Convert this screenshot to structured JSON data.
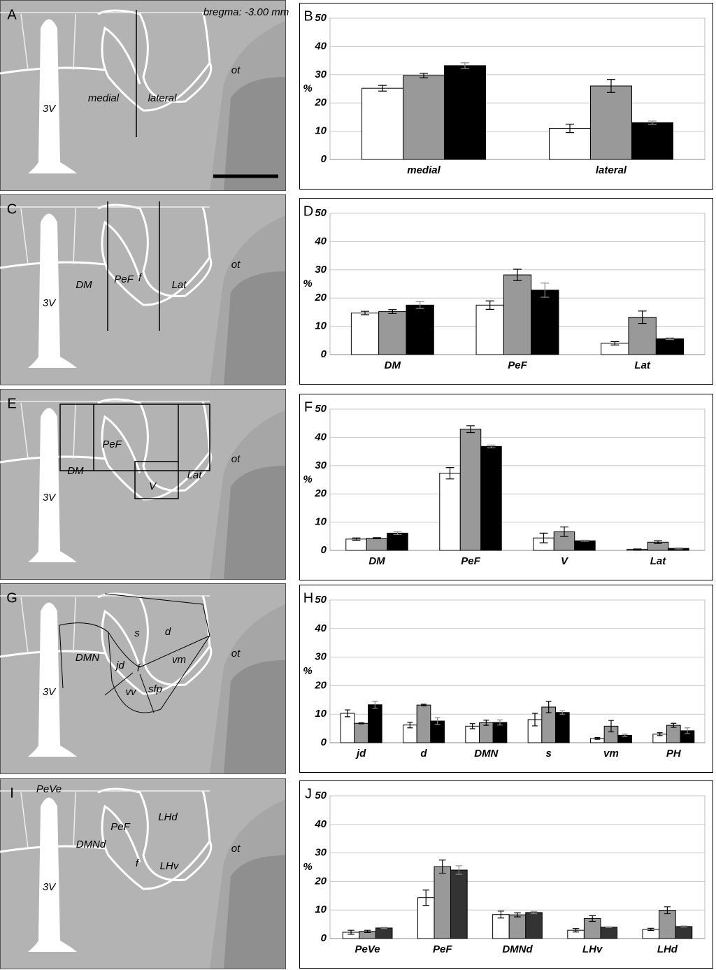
{
  "images": [
    {
      "panel": "A",
      "labels": [
        "bregma: -3.00 mm",
        "medial",
        "lateral",
        "3V",
        "ot"
      ]
    },
    {
      "panel": "C",
      "labels": [
        "DM",
        "PeF",
        "f",
        "Lat",
        "3V",
        "ot"
      ]
    },
    {
      "panel": "E",
      "labels": [
        "PeF",
        "DM",
        "V",
        "Lat",
        "3V",
        "ot"
      ]
    },
    {
      "panel": "G",
      "labels": [
        "s",
        "d",
        "DMN",
        "jd",
        "f",
        "vm",
        "vv",
        "sfp",
        "3V",
        "ot"
      ]
    },
    {
      "panel": "I",
      "labels": [
        "PeVe",
        "LHd",
        "PeF",
        "DMNd",
        "f",
        "LHv",
        "3V",
        "ot"
      ]
    }
  ],
  "chart_data": [
    {
      "type": "bar",
      "panel": "B",
      "ylabel": "%",
      "categories": [
        "medial",
        "lateral"
      ],
      "ylim": [
        0,
        50
      ],
      "yticks": [
        0,
        10,
        20,
        30,
        40,
        50
      ],
      "grid": true,
      "series": [
        {
          "color": "#ffffff",
          "values": [
            25.2,
            11
          ],
          "errors": [
            1,
            1.5
          ]
        },
        {
          "color": "#999999",
          "values": [
            29.7,
            26
          ],
          "errors": [
            0.8,
            2.3
          ]
        },
        {
          "color": "#000000",
          "values": [
            33.2,
            13
          ],
          "errors": [
            1,
            0.6
          ]
        }
      ]
    },
    {
      "type": "bar",
      "panel": "D",
      "ylabel": "%",
      "categories": [
        "DM",
        "PeF",
        "Lat"
      ],
      "ylim": [
        0,
        50
      ],
      "yticks": [
        0,
        10,
        20,
        30,
        40,
        50
      ],
      "grid": true,
      "series": [
        {
          "color": "#ffffff",
          "values": [
            14.7,
            17.5,
            4
          ],
          "errors": [
            0.6,
            1.5,
            0.6
          ]
        },
        {
          "color": "#999999",
          "values": [
            15.2,
            28.2,
            13.2
          ],
          "errors": [
            0.7,
            2,
            2.2
          ]
        },
        {
          "color": "#000000",
          "values": [
            17.5,
            22.8,
            5.6
          ],
          "errors": [
            1.2,
            2.5,
            0.3
          ]
        }
      ]
    },
    {
      "type": "bar",
      "panel": "F",
      "ylabel": "%",
      "categories": [
        "DM",
        "PeF",
        "V",
        "Lat"
      ],
      "ylim": [
        0,
        50
      ],
      "yticks": [
        0,
        10,
        20,
        30,
        40,
        50
      ],
      "grid": true,
      "series": [
        {
          "color": "#ffffff",
          "values": [
            4,
            27.3,
            4.4,
            0.4
          ],
          "errors": [
            0.4,
            2,
            1.7,
            0.1
          ]
        },
        {
          "color": "#999999",
          "values": [
            4.3,
            42.9,
            6.6,
            2.9
          ],
          "errors": [
            0.2,
            1.2,
            1.7,
            0.5
          ]
        },
        {
          "color": "#000000",
          "values": [
            6.1,
            36.8,
            3.4,
            0.7
          ],
          "errors": [
            0.5,
            0.5,
            0.2,
            0.2
          ]
        }
      ]
    },
    {
      "type": "bar",
      "panel": "H",
      "ylabel": "%",
      "categories": [
        "jd",
        "d",
        "DMN",
        "s",
        "vm",
        "PH"
      ],
      "ylim": [
        0,
        50
      ],
      "yticks": [
        0,
        10,
        20,
        30,
        40,
        50
      ],
      "grid": true,
      "series": [
        {
          "color": "#ffffff",
          "values": [
            10.3,
            6.2,
            5.8,
            8.1,
            1.5,
            3
          ],
          "errors": [
            1.2,
            1,
            0.9,
            2.2,
            0.3,
            0.5
          ]
        },
        {
          "color": "#999999",
          "values": [
            6.8,
            13.2,
            7,
            12.5,
            5.8,
            6.1
          ],
          "errors": [
            0.2,
            0.3,
            0.9,
            2,
            2,
            0.7
          ]
        },
        {
          "color": "#000000",
          "values": [
            13.3,
            7.6,
            7.1,
            10.6,
            2.6,
            4.2
          ],
          "errors": [
            1.2,
            1.2,
            0.9,
            0.6,
            0.4,
            1
          ]
        }
      ]
    },
    {
      "type": "bar",
      "panel": "J",
      "ylabel": "%",
      "categories": [
        "PeVe",
        "PeF",
        "DMNd",
        "LHv",
        "LHd"
      ],
      "ylim": [
        0,
        50
      ],
      "yticks": [
        0,
        10,
        20,
        30,
        40,
        50
      ],
      "grid": true,
      "series": [
        {
          "color": "#ffffff",
          "values": [
            2.2,
            14.3,
            8.4,
            2.9,
            3.2
          ],
          "errors": [
            0.7,
            2.7,
            1.2,
            0.6,
            0.4
          ]
        },
        {
          "color": "#999999",
          "values": [
            2.5,
            25.2,
            8.3,
            7,
            9.9
          ],
          "errors": [
            0.4,
            2.3,
            0.7,
            1,
            1.2
          ]
        },
        {
          "color": "#333333",
          "values": [
            3.7,
            24,
            9.1,
            4,
            4.2
          ],
          "errors": [
            0.2,
            1.5,
            0.4,
            0.1,
            0.2
          ]
        }
      ]
    }
  ]
}
